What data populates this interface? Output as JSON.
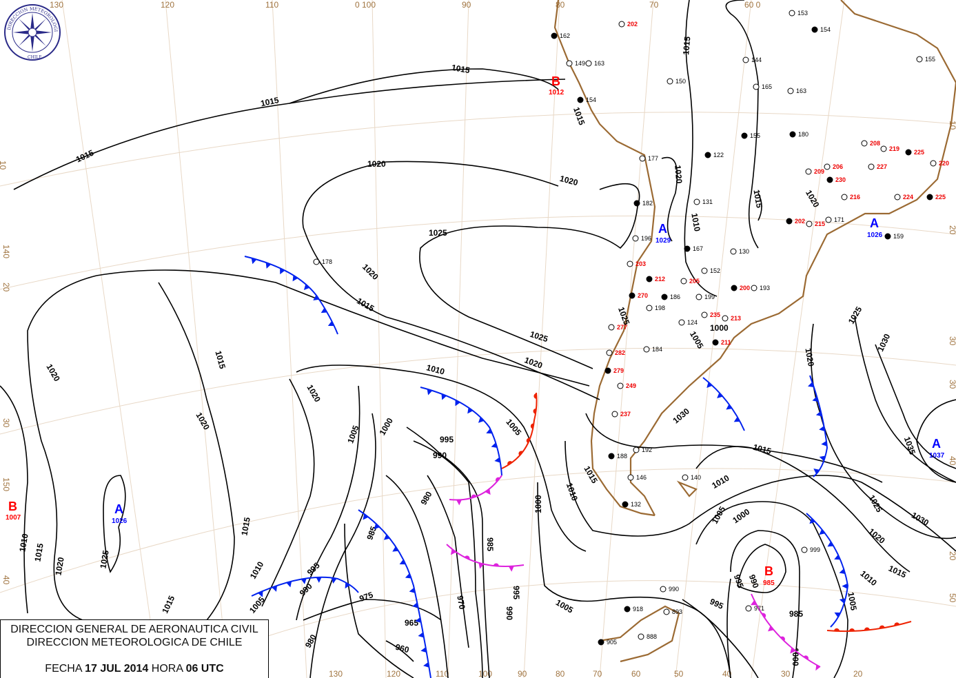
{
  "title": {
    "line1": "DIRECCION GENERAL DE AERONAUTICA CIVIL",
    "line2": "DIRECCION METEOROLOGICA DE CHILE",
    "date_label": "FECHA",
    "date": "17 JUL 2014",
    "hour_label": "HORA",
    "hour": "06 UTC"
  },
  "logo": {
    "text": "DIRECCION METEOROLOGICA CHILE",
    "icon": "compass-rose-icon"
  },
  "colors": {
    "isobar": "#000000",
    "cold_front": "#0022ee",
    "warm_front": "#ee2200",
    "occluded_front": "#dd22dd",
    "coast": "#9b6a33",
    "high": "#0000ff",
    "low": "#ff0000",
    "grid": "#e8d8c6"
  },
  "grid_labels": {
    "top": [
      "130",
      "120",
      "110",
      "0 100",
      "90",
      "80",
      "70",
      "60 0"
    ],
    "left": [
      "10",
      "140",
      "20",
      "30",
      "150",
      "40"
    ],
    "bottom": [
      "130",
      "120",
      "110",
      "100",
      "90",
      "80",
      "70",
      "60",
      "50",
      "40",
      "30",
      "20"
    ],
    "right": [
      "10",
      "20",
      "30",
      "30",
      "40",
      "20",
      "50"
    ]
  },
  "pressure_centers": [
    {
      "type": "B",
      "value": "1012"
    },
    {
      "type": "A",
      "value": "1029"
    },
    {
      "type": "A",
      "value": "1026"
    },
    {
      "type": "B",
      "value": "1007"
    },
    {
      "type": "A",
      "value": "1026"
    },
    {
      "type": "B",
      "value": "985"
    },
    {
      "type": "A",
      "value": "1037"
    }
  ],
  "isobar_labels": [
    "1015",
    "1015",
    "1015",
    "1020",
    "1020",
    "1025",
    "1020",
    "1015",
    "1025",
    "1020",
    "1010",
    "1015",
    "1020",
    "1020",
    "1015",
    "1005",
    "1000",
    "995",
    "990",
    "1005",
    "980",
    "985",
    "1000",
    "985",
    "975",
    "970",
    "990",
    "995",
    "980",
    "965",
    "960",
    "1005",
    "990",
    "995",
    "1010",
    "1015",
    "1020",
    "1025",
    "1015",
    "1020",
    "1010",
    "1015",
    "1010",
    "1005",
    "1000",
    "995",
    "990",
    "985",
    "995",
    "1000",
    "1005",
    "1010",
    "1015",
    "1020",
    "1025",
    "1030",
    "1035",
    "1025",
    "1030",
    "1020",
    "1015",
    "1010",
    "1005",
    "1015",
    "1020",
    "1015",
    "1010",
    "1005",
    "1000",
    "1015",
    "1020",
    "1025",
    "1030"
  ],
  "stations": [
    "162",
    "163",
    "149",
    "154",
    "202",
    "177",
    "182",
    "196",
    "203",
    "212",
    "205",
    "199",
    "270",
    "277",
    "282",
    "279",
    "249",
    "237",
    "188",
    "192",
    "146",
    "132",
    "140",
    "178",
    "167",
    "131",
    "130",
    "122",
    "150",
    "165",
    "155",
    "144",
    "153",
    "154",
    "155",
    "163",
    "180",
    "208",
    "219",
    "225",
    "220",
    "224",
    "225",
    "227",
    "209",
    "230",
    "216",
    "206",
    "202",
    "215",
    "171",
    "159",
    "152",
    "193",
    "200",
    "213",
    "235",
    "211",
    "184",
    "124",
    "186",
    "198",
    "990",
    "918",
    "893",
    "888",
    "905",
    "971",
    "999"
  ]
}
